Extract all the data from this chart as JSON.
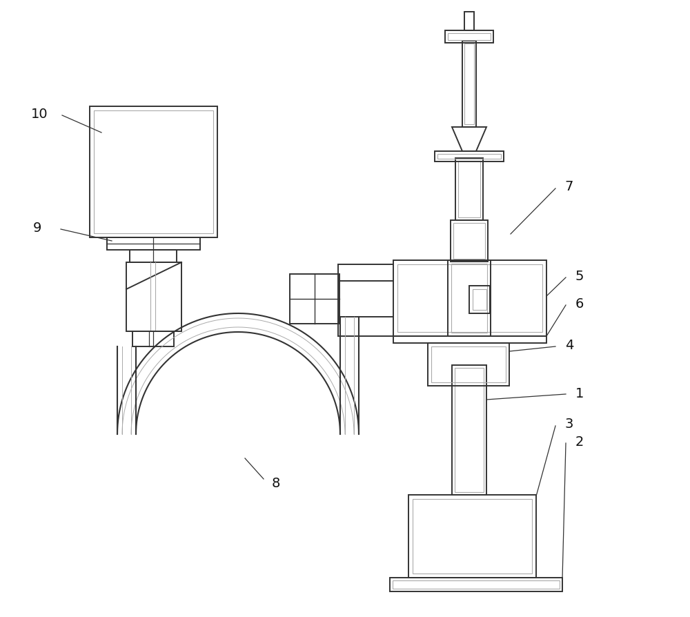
{
  "bg_color": "#ffffff",
  "lc": "#333333",
  "llc": "#aaaaaa",
  "figsize": [
    10.0,
    8.95
  ],
  "dpi": 100
}
